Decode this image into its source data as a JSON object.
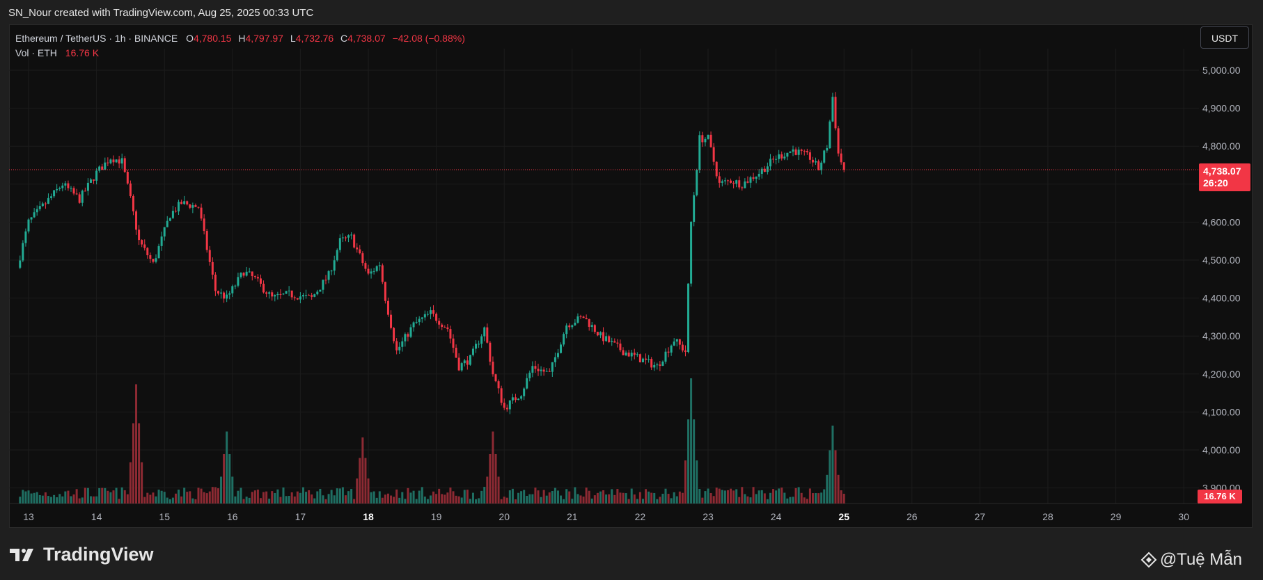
{
  "caption": "SN_Nour created with TradingView.com, Aug 25, 2025 00:33 UTC",
  "symbol": {
    "name": "Ethereum / TetherUS · 1h · BINANCE",
    "open_label": "O",
    "open": "4,780.15",
    "high_label": "H",
    "high": "4,797.97",
    "low_label": "L",
    "low": "4,732.76",
    "close_label": "C",
    "close": "4,738.07",
    "change": "−42.08 (−0.88%)"
  },
  "volume_legend": {
    "label": "Vol · ETH",
    "value": "16.76 K"
  },
  "currency_button": "USDT",
  "last_price": {
    "price": "4,738.07",
    "countdown": "26:20"
  },
  "volume_tag": "16.76 K",
  "brand": "TradingView",
  "watermark": "@Tuệ Mẫn",
  "colors": {
    "up": "#22ab94",
    "down": "#f23645",
    "background": "#0f0f0f",
    "grid": "#1c1c1c"
  },
  "chart_data": {
    "type": "candlestick",
    "title": "Ethereum / TetherUS · 1h · BINANCE",
    "y_ticks": [
      "3,900.00",
      "4,000.00",
      "4,100.00",
      "4,200.00",
      "4,300.00",
      "4,400.00",
      "4,500.00",
      "4,600.00",
      "4,700.00",
      "4,800.00",
      "4,900.00",
      "5,000.00"
    ],
    "ylim": [
      3860,
      5060
    ],
    "x_ticks": [
      "13",
      "14",
      "15",
      "16",
      "17",
      "18",
      "19",
      "20",
      "21",
      "22",
      "23",
      "24",
      "25",
      "26",
      "27",
      "28",
      "29",
      "30"
    ],
    "x_ticks_bold": [
      "18",
      "25"
    ],
    "last_price": 4738.07,
    "series": [
      {
        "name": "ETHUSDT",
        "anchors": [
          {
            "t": "2025-08-12 20:00",
            "price": 4480
          },
          {
            "t": "2025-08-13 00:00",
            "price": 4600
          },
          {
            "t": "2025-08-13 06:00",
            "price": 4650
          },
          {
            "t": "2025-08-13 12:00",
            "price": 4700
          },
          {
            "t": "2025-08-13 18:00",
            "price": 4660
          },
          {
            "t": "2025-08-14 00:00",
            "price": 4730
          },
          {
            "t": "2025-08-14 05:00",
            "price": 4770
          },
          {
            "t": "2025-08-14 09:00",
            "price": 4760
          },
          {
            "t": "2025-08-14 12:00",
            "price": 4660
          },
          {
            "t": "2025-08-14 15:00",
            "price": 4550
          },
          {
            "t": "2025-08-14 20:00",
            "price": 4490
          },
          {
            "t": "2025-08-15 02:00",
            "price": 4620
          },
          {
            "t": "2025-08-15 06:00",
            "price": 4650
          },
          {
            "t": "2025-08-15 12:00",
            "price": 4640
          },
          {
            "t": "2025-08-15 18:00",
            "price": 4420
          },
          {
            "t": "2025-08-15 22:00",
            "price": 4400
          },
          {
            "t": "2025-08-16 04:00",
            "price": 4470
          },
          {
            "t": "2025-08-16 08:00",
            "price": 4450
          },
          {
            "t": "2025-08-16 14:00",
            "price": 4400
          },
          {
            "t": "2025-08-16 20:00",
            "price": 4410
          },
          {
            "t": "2025-08-17 04:00",
            "price": 4400
          },
          {
            "t": "2025-08-17 10:00",
            "price": 4460
          },
          {
            "t": "2025-08-17 14:00",
            "price": 4550
          },
          {
            "t": "2025-08-17 18:00",
            "price": 4560
          },
          {
            "t": "2025-08-18 00:00",
            "price": 4460
          },
          {
            "t": "2025-08-18 04:00",
            "price": 4490
          },
          {
            "t": "2025-08-18 06:00",
            "price": 4400
          },
          {
            "t": "2025-08-18 10:00",
            "price": 4260
          },
          {
            "t": "2025-08-18 16:00",
            "price": 4330
          },
          {
            "t": "2025-08-18 22:00",
            "price": 4360
          },
          {
            "t": "2025-08-19 04:00",
            "price": 4320
          },
          {
            "t": "2025-08-19 08:00",
            "price": 4220
          },
          {
            "t": "2025-08-19 12:00",
            "price": 4240
          },
          {
            "t": "2025-08-19 17:00",
            "price": 4320
          },
          {
            "t": "2025-08-19 20:00",
            "price": 4200
          },
          {
            "t": "2025-08-20 00:00",
            "price": 4110
          },
          {
            "t": "2025-08-20 06:00",
            "price": 4150
          },
          {
            "t": "2025-08-20 10:00",
            "price": 4220
          },
          {
            "t": "2025-08-20 16:00",
            "price": 4200
          },
          {
            "t": "2025-08-20 22:00",
            "price": 4330
          },
          {
            "t": "2025-08-21 04:00",
            "price": 4350
          },
          {
            "t": "2025-08-21 10:00",
            "price": 4300
          },
          {
            "t": "2025-08-21 18:00",
            "price": 4260
          },
          {
            "t": "2025-08-21 24:00",
            "price": 4240
          },
          {
            "t": "2025-08-22 06:00",
            "price": 4220
          },
          {
            "t": "2025-08-22 12:00",
            "price": 4290
          },
          {
            "t": "2025-08-22 16:00",
            "price": 4260
          },
          {
            "t": "2025-08-22 18:00",
            "price": 4600
          },
          {
            "t": "2025-08-22 21:00",
            "price": 4820
          },
          {
            "t": "2025-08-23 00:00",
            "price": 4820
          },
          {
            "t": "2025-08-23 04:00",
            "price": 4700
          },
          {
            "t": "2025-08-23 08:00",
            "price": 4710
          },
          {
            "t": "2025-08-23 12:00",
            "price": 4700
          },
          {
            "t": "2025-08-23 18:00",
            "price": 4730
          },
          {
            "t": "2025-08-24 00:00",
            "price": 4770
          },
          {
            "t": "2025-08-24 06:00",
            "price": 4790
          },
          {
            "t": "2025-08-24 12:00",
            "price": 4770
          },
          {
            "t": "2025-08-24 15:00",
            "price": 4740
          },
          {
            "t": "2025-08-24 18:00",
            "price": 4800
          },
          {
            "t": "2025-08-24 20:00",
            "price": 4930
          },
          {
            "t": "2025-08-24 22:00",
            "price": 4780
          },
          {
            "t": "2025-08-25 00:00",
            "price": 4738
          }
        ]
      }
    ],
    "volume_spikes": [
      {
        "t": "2025-08-14 14:00",
        "relative": 0.95
      },
      {
        "t": "2025-08-15 22:00",
        "relative": 0.55
      },
      {
        "t": "2025-08-17 22:00",
        "relative": 0.5
      },
      {
        "t": "2025-08-19 20:00",
        "relative": 0.55
      },
      {
        "t": "2025-08-22 18:00",
        "relative": 1.0
      },
      {
        "t": "2025-08-24 20:00",
        "relative": 0.6
      }
    ]
  }
}
